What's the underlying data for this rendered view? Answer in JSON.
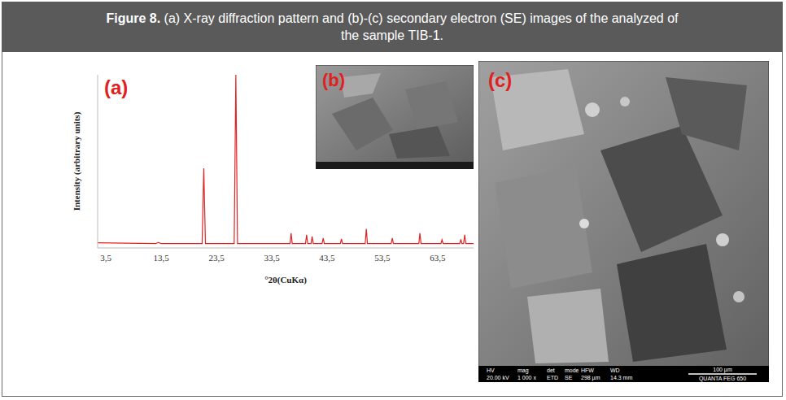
{
  "header": {
    "label": "Figure 8.",
    "caption": "(a) X-ray diffraction pattern and (b)-(c) secondary electron (SE) images of the analyzed of the sample TIB-1."
  },
  "chart_data": {
    "type": "line",
    "title": "(a)",
    "x_label": "°2θ(CuKα)",
    "y_label": "Intensity (arbitrary units)",
    "x": [
      2,
      12.5,
      13,
      13.5,
      20.9,
      21.2,
      21.5,
      26.7,
      27.0,
      27.3,
      36.8,
      37.0,
      37.2,
      39.6,
      39.8,
      40.0,
      40.6,
      40.8,
      41.0,
      42.6,
      42.8,
      43.0,
      45.9,
      46.1,
      46.3,
      50.4,
      50.6,
      50.8,
      55.1,
      55.3,
      55.5,
      60.1,
      60.3,
      60.5,
      64.1,
      64.3,
      64.5,
      67.5,
      67.7,
      67.9,
      68.2,
      68.4,
      68.6,
      70
    ],
    "values": [
      3,
      2.5,
      3.2,
      2.5,
      2.5,
      46,
      2.5,
      2.5,
      100,
      2.5,
      2.5,
      8.5,
      2.5,
      2.5,
      7.6,
      2.5,
      2.5,
      6.6,
      2.5,
      2.5,
      5.7,
      2.5,
      2.5,
      5.2,
      2.5,
      2.5,
      11,
      2.5,
      2.5,
      5.7,
      2.5,
      2.5,
      8.5,
      2.5,
      2.5,
      4.7,
      2.5,
      2.5,
      5,
      2.5,
      2.5,
      7.6,
      2.5,
      2.5
    ],
    "color": "#e02424",
    "xlim": [
      2,
      70
    ],
    "xticks": [
      {
        "value": 3.5,
        "label": "3,5"
      },
      {
        "value": 13.5,
        "label": "13,5"
      },
      {
        "value": 23.5,
        "label": "23,5"
      },
      {
        "value": 33.5,
        "label": "33,5"
      },
      {
        "value": 43.5,
        "label": "43,5"
      },
      {
        "value": 53.5,
        "label": "53,5"
      },
      {
        "value": 63.5,
        "label": "63,5"
      }
    ],
    "ylim": [
      0,
      100
    ],
    "yticks": [],
    "grid": false,
    "tick_labels": "x"
  },
  "panels": {
    "b": {
      "label": "(b)"
    },
    "c": {
      "label": "(c)",
      "info_bar": {
        "fields": [
          {
            "name": "HV",
            "value": "20.00 kV"
          },
          {
            "name": "mag",
            "value": "1 000 x"
          },
          {
            "name": "det",
            "value": "ETD"
          },
          {
            "name": "mode",
            "value": "SE"
          },
          {
            "name": "HFW",
            "value": "298 µm"
          },
          {
            "name": "WD",
            "value": "14.3 mm"
          }
        ],
        "scale": "100 µm",
        "instrument": "QUANTA FEG 650"
      }
    }
  }
}
